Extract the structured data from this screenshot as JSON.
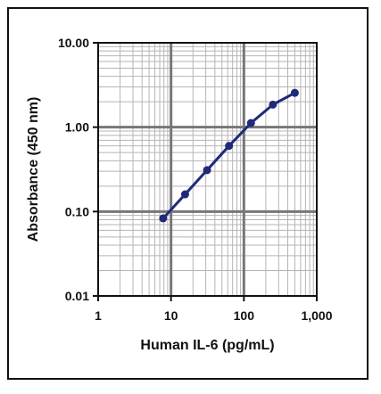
{
  "chart_data": {
    "type": "line",
    "title": "",
    "xlabel": "Human IL-6 (pg/mL)",
    "ylabel": "Absorbance (450 nm)",
    "x_scale": "log",
    "y_scale": "log",
    "xlim": [
      1,
      1000
    ],
    "ylim": [
      0.01,
      10
    ],
    "x_ticks": [
      "1",
      "10",
      "100",
      "1,000"
    ],
    "y_ticks": [
      "10.00",
      "1.00",
      "0.10",
      "0.01"
    ],
    "grid": true,
    "series": [
      {
        "x": [
          7.8,
          15.6,
          31.25,
          62.5,
          125,
          250,
          500
        ],
        "y": [
          0.083,
          0.16,
          0.31,
          0.6,
          1.12,
          1.85,
          2.55
        ],
        "color": "#1f2a78"
      }
    ]
  }
}
